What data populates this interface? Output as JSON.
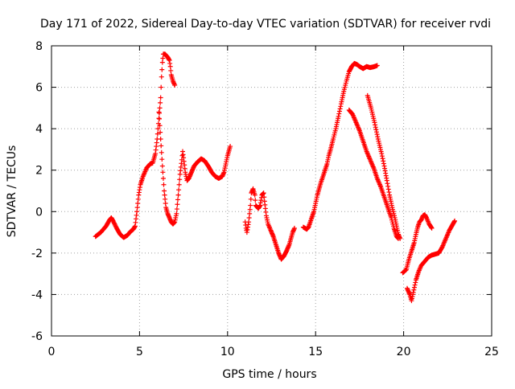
{
  "chart_data": {
    "type": "scatter",
    "title": "Day 171 of 2022, Sidereal Day-to-day VTEC variation (SDTVAR) for receiver rvdi",
    "xlabel": "GPS time / hours",
    "ylabel": "SDTVAR / TECUs",
    "xlim": [
      0,
      25
    ],
    "ylim": [
      -6,
      8
    ],
    "xticks": [
      0,
      5,
      10,
      15,
      20,
      25
    ],
    "yticks": [
      -6,
      -4,
      -2,
      0,
      2,
      4,
      6,
      8
    ],
    "grid": true,
    "marker": "+",
    "color": "#ff0000",
    "series": [
      {
        "segments": [
          [
            [
              2.5,
              -1.2
            ],
            [
              2.8,
              -1.0
            ],
            [
              3.1,
              -0.7
            ],
            [
              3.3,
              -0.4
            ],
            [
              3.4,
              -0.3
            ],
            [
              3.5,
              -0.45
            ],
            [
              3.7,
              -0.8
            ],
            [
              3.9,
              -1.1
            ],
            [
              4.1,
              -1.25
            ],
            [
              4.3,
              -1.15
            ],
            [
              4.5,
              -0.95
            ],
            [
              4.65,
              -0.85
            ],
            [
              4.75,
              -0.7
            ],
            [
              4.85,
              0.0
            ],
            [
              4.95,
              0.8
            ],
            [
              5.05,
              1.3
            ],
            [
              5.2,
              1.7
            ],
            [
              5.4,
              2.1
            ],
            [
              5.6,
              2.3
            ],
            [
              5.75,
              2.35
            ],
            [
              5.8,
              2.5
            ],
            [
              5.9,
              2.8
            ],
            [
              6.0,
              3.5
            ],
            [
              6.1,
              4.5
            ],
            [
              6.2,
              5.5
            ],
            [
              6.25,
              6.5
            ],
            [
              6.3,
              7.2
            ],
            [
              6.35,
              7.6
            ],
            [
              6.45,
              7.6
            ],
            [
              6.6,
              7.45
            ],
            [
              6.7,
              7.3
            ],
            [
              6.75,
              7.0
            ],
            [
              6.8,
              6.6
            ],
            [
              6.9,
              6.3
            ],
            [
              7.0,
              6.1
            ]
          ],
          [
            [
              6.1,
              4.8
            ],
            [
              6.2,
              3.5
            ],
            [
              6.3,
              2.2
            ],
            [
              6.4,
              1.0
            ],
            [
              6.5,
              0.2
            ],
            [
              6.6,
              -0.1
            ],
            [
              6.7,
              -0.3
            ],
            [
              6.8,
              -0.5
            ],
            [
              6.9,
              -0.6
            ],
            [
              7.0,
              -0.5
            ],
            [
              7.1,
              -0.1
            ],
            [
              7.2,
              0.8
            ],
            [
              7.3,
              1.8
            ],
            [
              7.4,
              2.5
            ],
            [
              7.45,
              2.9
            ],
            [
              7.5,
              2.6
            ],
            [
              7.6,
              1.9
            ],
            [
              7.7,
              1.5
            ],
            [
              7.8,
              1.6
            ],
            [
              7.9,
              1.8
            ],
            [
              8.0,
              2.0
            ],
            [
              8.1,
              2.2
            ],
            [
              8.3,
              2.4
            ],
            [
              8.5,
              2.55
            ],
            [
              8.7,
              2.45
            ],
            [
              8.9,
              2.2
            ],
            [
              9.1,
              1.9
            ],
            [
              9.3,
              1.7
            ],
            [
              9.5,
              1.6
            ],
            [
              9.7,
              1.7
            ],
            [
              9.8,
              1.9
            ],
            [
              9.9,
              2.3
            ],
            [
              10.0,
              2.7
            ],
            [
              10.1,
              3.0
            ],
            [
              10.15,
              3.15
            ]
          ],
          [
            [
              11.0,
              -0.5
            ],
            [
              11.05,
              -0.8
            ],
            [
              11.1,
              -1.0
            ],
            [
              11.2,
              -0.5
            ],
            [
              11.3,
              0.3
            ],
            [
              11.35,
              0.9
            ],
            [
              11.45,
              1.1
            ],
            [
              11.55,
              0.8
            ],
            [
              11.6,
              0.3
            ],
            [
              11.75,
              0.15
            ],
            [
              11.85,
              0.3
            ],
            [
              11.95,
              0.8
            ],
            [
              12.05,
              0.9
            ],
            [
              12.1,
              0.5
            ],
            [
              12.2,
              -0.2
            ],
            [
              12.3,
              -0.6
            ],
            [
              12.45,
              -0.9
            ],
            [
              12.6,
              -1.2
            ],
            [
              12.75,
              -1.6
            ],
            [
              12.9,
              -2.0
            ],
            [
              13.05,
              -2.3
            ],
            [
              13.2,
              -2.15
            ],
            [
              13.35,
              -1.9
            ],
            [
              13.5,
              -1.6
            ],
            [
              13.6,
              -1.3
            ],
            [
              13.7,
              -1.0
            ],
            [
              13.8,
              -0.8
            ]
          ],
          [
            [
              14.3,
              -0.75
            ],
            [
              14.5,
              -0.85
            ],
            [
              14.6,
              -0.75
            ],
            [
              14.7,
              -0.5
            ],
            [
              14.8,
              -0.25
            ],
            [
              14.9,
              0.0
            ],
            [
              15.0,
              0.4
            ],
            [
              15.1,
              0.8
            ],
            [
              15.2,
              1.1
            ],
            [
              15.3,
              1.4
            ],
            [
              15.5,
              1.9
            ],
            [
              15.65,
              2.3
            ],
            [
              15.75,
              2.7
            ],
            [
              15.85,
              3.0
            ],
            [
              16.0,
              3.5
            ],
            [
              16.15,
              4.0
            ],
            [
              16.3,
              4.6
            ],
            [
              16.45,
              5.2
            ],
            [
              16.6,
              5.8
            ],
            [
              16.75,
              6.3
            ],
            [
              16.9,
              6.75
            ],
            [
              17.05,
              7.0
            ],
            [
              17.2,
              7.15
            ],
            [
              17.35,
              7.1
            ],
            [
              17.5,
              7.0
            ],
            [
              17.7,
              6.9
            ],
            [
              17.9,
              7.0
            ],
            [
              18.1,
              6.95
            ],
            [
              18.35,
              7.0
            ],
            [
              18.5,
              7.05
            ]
          ],
          [
            [
              16.9,
              4.9
            ],
            [
              17.1,
              4.7
            ],
            [
              17.3,
              4.3
            ],
            [
              17.5,
              3.9
            ],
            [
              17.7,
              3.4
            ],
            [
              17.9,
              2.9
            ],
            [
              18.1,
              2.5
            ],
            [
              18.3,
              2.1
            ],
            [
              18.5,
              1.6
            ],
            [
              18.7,
              1.2
            ],
            [
              18.9,
              0.7
            ],
            [
              19.1,
              0.2
            ],
            [
              19.3,
              -0.3
            ],
            [
              19.45,
              -0.8
            ],
            [
              19.6,
              -1.2
            ],
            [
              19.7,
              -1.3
            ]
          ],
          [
            [
              17.95,
              5.6
            ],
            [
              18.15,
              5.0
            ],
            [
              18.35,
              4.3
            ],
            [
              18.55,
              3.5
            ],
            [
              18.75,
              2.8
            ],
            [
              18.9,
              2.2
            ],
            [
              19.05,
              1.5
            ],
            [
              19.2,
              0.8
            ],
            [
              19.35,
              0.2
            ],
            [
              19.5,
              -0.3
            ],
            [
              19.6,
              -0.7
            ],
            [
              19.7,
              -1.1
            ],
            [
              19.8,
              -1.3
            ]
          ],
          [
            [
              19.95,
              -2.95
            ],
            [
              20.15,
              -2.8
            ],
            [
              20.3,
              -2.3
            ],
            [
              20.45,
              -1.9
            ],
            [
              20.6,
              -1.5
            ],
            [
              20.7,
              -1.1
            ],
            [
              20.8,
              -0.75
            ],
            [
              20.9,
              -0.5
            ],
            [
              21.0,
              -0.4
            ],
            [
              21.1,
              -0.2
            ],
            [
              21.2,
              -0.15
            ],
            [
              21.3,
              -0.3
            ],
            [
              21.45,
              -0.6
            ],
            [
              21.6,
              -0.8
            ]
          ],
          [
            [
              20.2,
              -3.7
            ],
            [
              20.35,
              -4.0
            ],
            [
              20.45,
              -4.3
            ],
            [
              20.55,
              -3.9
            ],
            [
              20.7,
              -3.3
            ],
            [
              20.85,
              -2.9
            ],
            [
              21.0,
              -2.6
            ],
            [
              21.2,
              -2.4
            ],
            [
              21.4,
              -2.2
            ],
            [
              21.6,
              -2.1
            ],
            [
              21.8,
              -2.05
            ],
            [
              22.0,
              -2.0
            ],
            [
              22.2,
              -1.7
            ],
            [
              22.4,
              -1.3
            ],
            [
              22.6,
              -0.9
            ],
            [
              22.8,
              -0.6
            ],
            [
              22.9,
              -0.45
            ]
          ]
        ]
      }
    ]
  }
}
